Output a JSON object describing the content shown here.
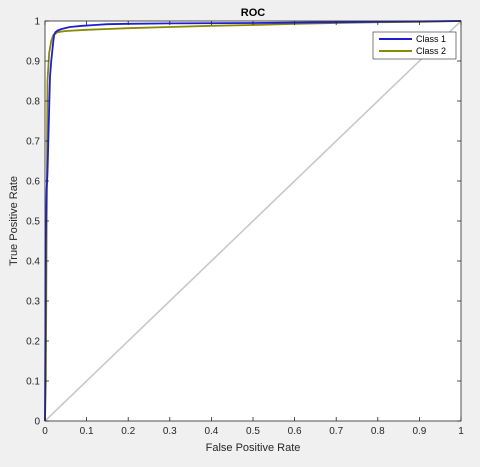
{
  "chart_data": {
    "type": "line",
    "title": "ROC",
    "xlabel": "False Positive Rate",
    "ylabel": "True Positive Rate",
    "xlim": [
      0,
      1
    ],
    "ylim": [
      0,
      1
    ],
    "xticks": [
      "0",
      "0.1",
      "0.2",
      "0.3",
      "0.4",
      "0.5",
      "0.6",
      "0.7",
      "0.8",
      "0.9",
      "1"
    ],
    "yticks": [
      "0",
      "0.1",
      "0.2",
      "0.3",
      "0.4",
      "0.5",
      "0.6",
      "0.7",
      "0.8",
      "0.9",
      "1"
    ],
    "grid": false,
    "legend_position": "top-right",
    "background_color": "#f0f0f0",
    "plot_area_color": "#ffffff",
    "diagonal": {
      "x": [
        0,
        1
      ],
      "y": [
        0,
        1
      ],
      "color": "#c8c8c8"
    },
    "series": [
      {
        "name": "Class 1",
        "color": "#1f1fd1",
        "x": [
          0,
          0.002,
          0.004,
          0.006,
          0.008,
          0.01,
          0.012,
          0.015,
          0.018,
          0.02,
          0.022,
          0.025,
          0.03,
          0.04,
          0.06,
          0.09,
          0.12,
          0.15,
          0.2,
          0.3,
          0.5,
          0.7,
          1.0
        ],
        "y": [
          0,
          0.45,
          0.58,
          0.62,
          0.7,
          0.78,
          0.86,
          0.9,
          0.93,
          0.95,
          0.965,
          0.972,
          0.976,
          0.98,
          0.985,
          0.988,
          0.99,
          0.992,
          0.993,
          0.994,
          0.995,
          0.997,
          1.0
        ]
      },
      {
        "name": "Class 2",
        "color": "#8a8a00",
        "x": [
          0,
          0.002,
          0.004,
          0.006,
          0.01,
          0.015,
          0.02,
          0.03,
          0.05,
          0.1,
          0.15,
          0.2,
          0.3,
          0.4,
          0.5,
          0.6,
          0.7,
          0.8,
          0.9,
          1.0
        ],
        "y": [
          0,
          0.1,
          0.5,
          0.85,
          0.92,
          0.95,
          0.965,
          0.972,
          0.975,
          0.978,
          0.98,
          0.982,
          0.985,
          0.988,
          0.99,
          0.993,
          0.995,
          0.997,
          0.998,
          1.0
        ]
      }
    ]
  }
}
